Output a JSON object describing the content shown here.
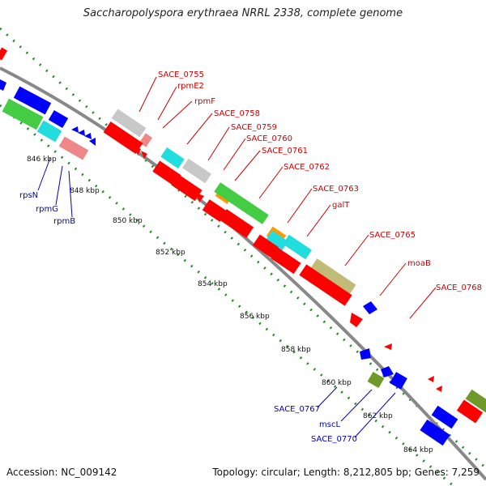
{
  "title": "Saccharopolyspora erythraea NRRL 2338, complete genome",
  "footer": {
    "accession": "Accession: NC_009142",
    "topology": "Topology: circular; Length: 8,212,805 bp; Genes: 7,259"
  },
  "colors": {
    "backbone": "#888888",
    "tick": "#228b22",
    "label_forward": "#cc0000",
    "label_reverse": "#0000bb",
    "gene_red": "#ff0000",
    "gene_blue": "#0000ff",
    "gene_green": "#44cc44",
    "gene_cyan": "#22dddd",
    "gene_gray": "#c8c8c8",
    "gene_pink": "#ee8888",
    "gene_orange": "#ff9900",
    "gene_khaki": "#c2bb77",
    "gene_olive": "#6f9a2a"
  },
  "kbp_labels": [
    "846 kbp",
    "848 kbp",
    "850 kbp",
    "852 kbp",
    "854 kbp",
    "856 kbp",
    "858 kbp",
    "860 kbp",
    "862 kbp",
    "864 kbp"
  ],
  "gene_labels_forward": [
    "SACE_0755",
    "rpmE2",
    "rpmF",
    "SACE_0758",
    "SACE_0759",
    "SACE_0760",
    "SACE_0761",
    "SACE_0762",
    "SACE_0763",
    "galT",
    "SACE_0765",
    "moaB",
    "SACE_0768"
  ],
  "gene_labels_reverse": [
    "rpsN",
    "rpmG",
    "rpmB",
    "SACE_0767",
    "mscL",
    "SACE_0770"
  ]
}
